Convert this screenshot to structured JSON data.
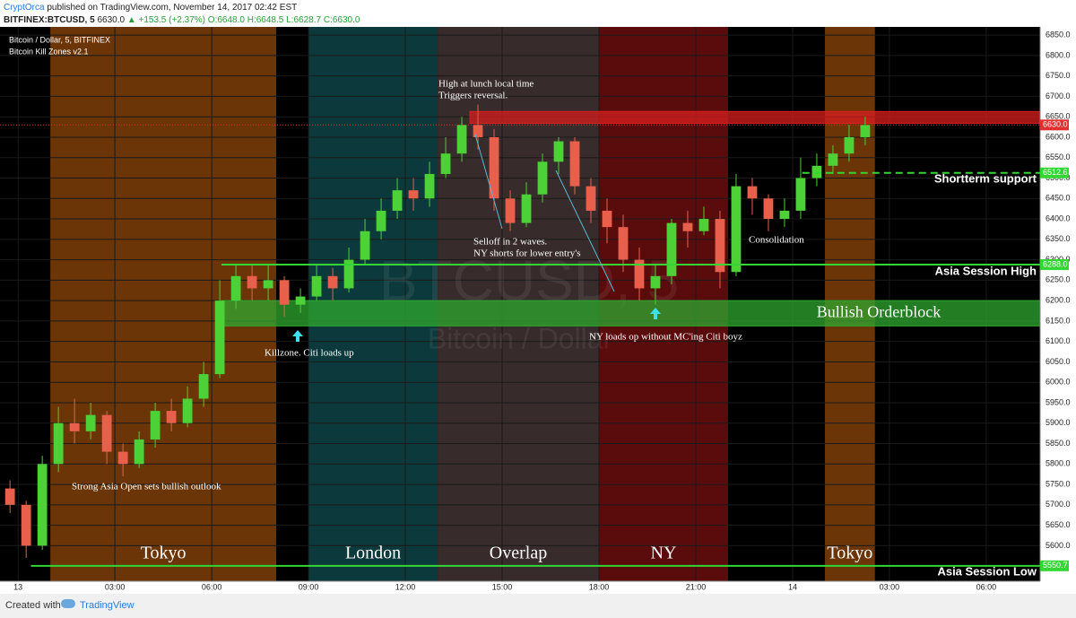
{
  "header": {
    "author": "CryptOrca",
    "published": "published on TradingView.com, November 14, 2017 02:42 EST",
    "symbol": "BITFINEX:BTCUSD, 5",
    "price": "6630.0",
    "change": "▲ +153.5 (+2.37%)",
    "ohlc": [
      "O:6648.0",
      "H:6648.5",
      "L:6628.7",
      "C:6630.0"
    ]
  },
  "footer": {
    "created": "Created with",
    "brand": "TradingView"
  },
  "chart_data": {
    "type": "candlestick",
    "title": "Bitcoin / Dollar, 5, BITFINEX",
    "subtitle": "Bitcoin Kill Zones v2.1",
    "watermark": [
      "BTCUSD, 5",
      "Bitcoin / Dollar"
    ],
    "xlim": [
      -0.56,
      31.67
    ],
    "xticks": [
      {
        "value": 0,
        "label": "13"
      },
      {
        "value": 3,
        "label": "03:00"
      },
      {
        "value": 6,
        "label": "06:00"
      },
      {
        "value": 9,
        "label": "09:00"
      },
      {
        "value": 12,
        "label": "12:00"
      },
      {
        "value": 15,
        "label": "15:00"
      },
      {
        "value": 18,
        "label": "18:00"
      },
      {
        "value": 21,
        "label": "21:00"
      },
      {
        "value": 24,
        "label": "14"
      },
      {
        "value": 27,
        "label": "03:00"
      },
      {
        "value": 30,
        "label": "06:00"
      }
    ],
    "ylim": [
      5513,
      6870
    ],
    "yticks": [
      {
        "value": 5600,
        "label": "5600.0"
      },
      {
        "value": 5650,
        "label": "5650.0"
      },
      {
        "value": 5700,
        "label": "5700.0"
      },
      {
        "value": 5750,
        "label": "5750.0"
      },
      {
        "value": 5800,
        "label": "5800.0"
      },
      {
        "value": 5850,
        "label": "5850.0"
      },
      {
        "value": 5900,
        "label": "5900.0"
      },
      {
        "value": 5950,
        "label": "5950.0"
      },
      {
        "value": 6000,
        "label": "6000.0"
      },
      {
        "value": 6050,
        "label": "6050.0"
      },
      {
        "value": 6100,
        "label": "6100.0"
      },
      {
        "value": 6150,
        "label": "6150.0"
      },
      {
        "value": 6200,
        "label": "6200.0"
      },
      {
        "value": 6250,
        "label": "6250.0"
      },
      {
        "value": 6300,
        "label": "6300.0"
      },
      {
        "value": 6350,
        "label": "6350.0"
      },
      {
        "value": 6400,
        "label": "6400.0"
      },
      {
        "value": 6450,
        "label": "6450.0"
      },
      {
        "value": 6500,
        "label": "6500.0"
      },
      {
        "value": 6550,
        "label": "6550.0"
      },
      {
        "value": 6600,
        "label": "6600.0"
      },
      {
        "value": 6650,
        "label": "6650.0"
      },
      {
        "value": 6700,
        "label": "6700.0"
      },
      {
        "value": 6750,
        "label": "6750.0"
      },
      {
        "value": 6800,
        "label": "6800.0"
      },
      {
        "value": 6850,
        "label": "6850.0"
      }
    ],
    "x": [
      -0.5,
      0,
      0.5,
      1,
      1.5,
      2,
      2.5,
      3,
      3.5,
      4,
      4.5,
      5,
      5.5,
      6,
      6.5,
      7,
      7.5,
      8,
      8.5,
      9,
      9.5,
      10,
      10.5,
      11,
      11.5,
      12,
      12.5,
      13,
      13.5,
      14,
      14.5,
      15,
      15.5,
      16,
      16.5,
      17,
      17.5,
      18,
      18.5,
      19,
      19.5,
      20,
      20.5,
      21,
      21.5,
      22,
      22.5,
      23,
      23.5,
      24,
      24.5,
      25,
      25.5,
      26
    ],
    "open": [
      5740,
      5700,
      5600,
      5800,
      5900,
      5880,
      5920,
      5830,
      5800,
      5860,
      5930,
      5900,
      5960,
      6020,
      6200,
      6260,
      6230,
      6250,
      6190,
      6210,
      6260,
      6230,
      6300,
      6370,
      6420,
      6470,
      6450,
      6510,
      6560,
      6630,
      6600,
      6450,
      6390,
      6460,
      6540,
      6590,
      6480,
      6420,
      6380,
      6300,
      6230,
      6260,
      6390,
      6370,
      6400,
      6270,
      6480,
      6450,
      6400,
      6420,
      6500,
      6530,
      6560,
      6600
    ],
    "high": [
      5760,
      5710,
      5820,
      5940,
      5960,
      5950,
      5930,
      5850,
      5880,
      5950,
      5960,
      5990,
      6050,
      6250,
      6290,
      6290,
      6290,
      6260,
      6230,
      6290,
      6280,
      6330,
      6400,
      6450,
      6500,
      6500,
      6540,
      6600,
      6650,
      6680,
      6620,
      6470,
      6490,
      6560,
      6600,
      6600,
      6500,
      6450,
      6410,
      6330,
      6290,
      6400,
      6420,
      6430,
      6420,
      6510,
      6500,
      6460,
      6450,
      6550,
      6560,
      6580,
      6630,
      6650
    ],
    "low": [
      5680,
      5570,
      5590,
      5780,
      5850,
      5860,
      5800,
      5770,
      5790,
      5840,
      5880,
      5890,
      5940,
      6010,
      6180,
      6200,
      6200,
      6160,
      6170,
      6200,
      6200,
      6220,
      6290,
      6350,
      6400,
      6420,
      6430,
      6500,
      6540,
      6570,
      6420,
      6370,
      6380,
      6440,
      6510,
      6460,
      6390,
      6340,
      6270,
      6200,
      6190,
      6240,
      6330,
      6360,
      6230,
      6260,
      6410,
      6370,
      6380,
      6400,
      6480,
      6510,
      6540,
      6580
    ],
    "close": [
      5700,
      5600,
      5800,
      5900,
      5880,
      5920,
      5830,
      5800,
      5860,
      5930,
      5900,
      5960,
      6020,
      6200,
      6260,
      6230,
      6250,
      6190,
      6210,
      6260,
      6230,
      6300,
      6370,
      6420,
      6470,
      6450,
      6510,
      6560,
      6630,
      6600,
      6450,
      6390,
      6460,
      6540,
      6590,
      6480,
      6420,
      6380,
      6300,
      6230,
      6260,
      6390,
      6370,
      6400,
      6270,
      6480,
      6450,
      6400,
      6420,
      6500,
      6530,
      6560,
      6600,
      6630
    ],
    "up_color": "#4cd137",
    "down_color": "#e8604c",
    "sessions": [
      {
        "name": "Tokyo",
        "start": 1,
        "end": 8,
        "color": "#6b3508"
      },
      {
        "name": "London",
        "start": 9,
        "end": 13,
        "color": "#0c3a3c"
      },
      {
        "name": "Overlap",
        "start": 13,
        "end": 18,
        "color": "#372b2b"
      },
      {
        "name": "NY",
        "start": 18,
        "end": 22,
        "color": "#5a0c0c"
      },
      {
        "name": "Tokyo",
        "start": 25,
        "end": 26.55,
        "color": "#6b3508"
      }
    ],
    "zones": [
      {
        "low": 6634,
        "high": 6663,
        "start": 14,
        "color": "#d81e1e"
      },
      {
        "name": "Bullish Orderblock",
        "low": 6138,
        "high": 6200,
        "start": 6.3,
        "color": "#2fa82f"
      }
    ],
    "levels": [
      {
        "name": "Asia Session High",
        "value": 6288,
        "label": "6288.0",
        "start": 6.3,
        "color": "#33d633",
        "style": "solid"
      },
      {
        "name": "Asia Session Low",
        "value": 5550.7,
        "label": "5550.7",
        "start": 0.4,
        "color": "#33d633",
        "style": "solid"
      },
      {
        "name": "Shortterm support",
        "value": 6512.6,
        "label": "6512.6",
        "start": 24.3,
        "color": "#33d633",
        "style": "dashed"
      },
      {
        "value": 6630,
        "label": "6630.0",
        "start": -0.56,
        "color": "#e03030",
        "style": "dotted"
      }
    ],
    "annotations": [
      "High at lunch local time",
      "Triggers reversal.",
      "Selloff in 2 waves.",
      "NY shorts for lower entry's",
      "Killzone. Citi loads up",
      "NY loads op without MC'ing Citi boyz",
      "Consolidation",
      "Strong Asia Open sets bullish outlook"
    ]
  }
}
